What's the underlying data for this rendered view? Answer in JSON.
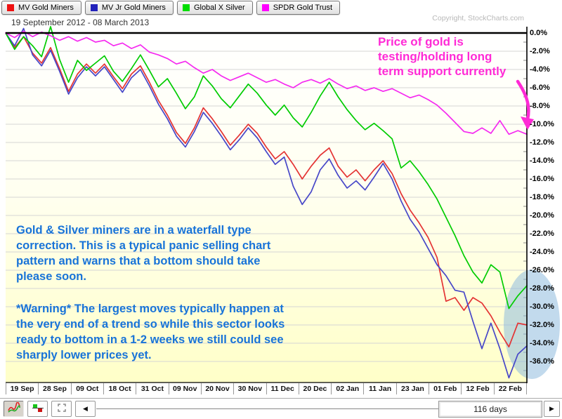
{
  "header": {
    "date_range": "19 September 2012 - 08 March 2013",
    "copyright": "Copyright, StockCharts.com"
  },
  "legend": {
    "items": [
      {
        "label": "MV Gold Miners",
        "color": "#ee1111"
      },
      {
        "label": "MV Jr Gold Miners",
        "color": "#2222bb"
      },
      {
        "label": "Global X Silver",
        "color": "#00dd00"
      },
      {
        "label": "SPDR Gold Trust",
        "color": "#ff00ff"
      }
    ]
  },
  "chart_data": {
    "type": "line",
    "title": "19 September 2012 - 08 March 2013",
    "unit": "percent change (%)",
    "grid": true,
    "legend_position": "top",
    "ylim": [
      -38.3,
      1.3
    ],
    "x_tick_labels": [
      "19 Sep",
      "28 Sep",
      "09 Oct",
      "18 Oct",
      "31 Oct",
      "09 Nov",
      "20 Nov",
      "30 Nov",
      "11 Dec",
      "20 Dec",
      "02 Jan",
      "11 Jan",
      "23 Jan",
      "01 Feb",
      "12 Feb",
      "22 Feb"
    ],
    "y_tick_labels": [
      "0.0%",
      "-2.0%",
      "-4.0%",
      "-6.0%",
      "-8.0%",
      "-10.0%",
      "-12.0%",
      "-14.0%",
      "-16.0%",
      "-18.0%",
      "-20.0%",
      "-22.0%",
      "-24.0%",
      "-26.0%",
      "-28.0%",
      "-30.0%",
      "-32.0%",
      "-34.0%",
      "-36.0%"
    ],
    "series": [
      {
        "name": "MV Gold Miners",
        "color": "#e43333",
        "values": [
          0,
          -1.6,
          -0.4,
          -2.2,
          -3.3,
          -1.6,
          -3.9,
          -6.4,
          -4.5,
          -3.4,
          -4.4,
          -3.4,
          -4.8,
          -6.1,
          -4.5,
          -3.6,
          -5.4,
          -7.4,
          -9.0,
          -10.9,
          -12.1,
          -10.4,
          -8.2,
          -9.4,
          -10.8,
          -12.3,
          -11.2,
          -10.0,
          -11.0,
          -12.5,
          -13.8,
          -13.0,
          -14.4,
          -16.0,
          -14.6,
          -13.4,
          -12.6,
          -14.6,
          -15.8,
          -15.0,
          -16.2,
          -15.0,
          -14.0,
          -15.4,
          -17.6,
          -19.4,
          -20.8,
          -22.4,
          -24.6,
          -29.4,
          -29.0,
          -30.4,
          -29.0,
          -29.6,
          -31.0,
          -32.8,
          -34.4,
          -31.8,
          -32.0
        ]
      },
      {
        "name": "MV Jr Gold Miners",
        "color": "#4747c8",
        "values": [
          0,
          -1.4,
          0.5,
          -2.4,
          -3.6,
          -1.9,
          -4.2,
          -6.7,
          -4.9,
          -3.7,
          -4.7,
          -3.7,
          -5.1,
          -6.5,
          -4.9,
          -4.0,
          -5.8,
          -7.8,
          -9.4,
          -11.3,
          -12.5,
          -10.8,
          -8.7,
          -9.9,
          -11.3,
          -12.8,
          -11.7,
          -10.4,
          -11.5,
          -13.0,
          -14.4,
          -13.6,
          -16.8,
          -18.8,
          -17.4,
          -15.0,
          -13.8,
          -15.6,
          -17.0,
          -16.2,
          -17.2,
          -15.8,
          -14.3,
          -16.0,
          -18.4,
          -20.4,
          -21.8,
          -23.6,
          -25.4,
          -26.6,
          -28.2,
          -28.4,
          -31.6,
          -34.6,
          -31.8,
          -34.6,
          -37.8,
          -35.2,
          -34.3
        ]
      },
      {
        "name": "Global X Silver",
        "color": "#0c0",
        "values": [
          0,
          -1.8,
          -0.4,
          -1.4,
          -2.6,
          0.7,
          -2.9,
          -5.4,
          -3.0,
          -4.1,
          -3.3,
          -2.5,
          -4.2,
          -5.3,
          -3.9,
          -2.4,
          -4.1,
          -5.9,
          -5.0,
          -6.6,
          -8.3,
          -7.0,
          -4.7,
          -5.8,
          -7.2,
          -8.2,
          -6.9,
          -5.6,
          -6.6,
          -7.9,
          -9.0,
          -7.9,
          -9.3,
          -10.3,
          -8.7,
          -6.9,
          -5.4,
          -7.0,
          -8.4,
          -9.6,
          -10.6,
          -9.9,
          -10.7,
          -11.6,
          -14.8,
          -14.0,
          -15.2,
          -16.6,
          -18.2,
          -20.2,
          -22.2,
          -24.4,
          -26.2,
          -27.4,
          -25.4,
          -26.2,
          -30.2,
          -28.8,
          -27.7
        ]
      },
      {
        "name": "SPDR Gold Trust",
        "color": "#f52af0",
        "values": [
          0,
          -0.5,
          0.2,
          -0.4,
          0.1,
          -0.3,
          -0.8,
          -0.4,
          -0.9,
          -0.5,
          -1.0,
          -0.8,
          -1.4,
          -1.1,
          -1.7,
          -1.3,
          -2.1,
          -2.4,
          -2.8,
          -3.4,
          -3.1,
          -3.8,
          -4.4,
          -4.0,
          -4.7,
          -5.2,
          -4.8,
          -4.4,
          -4.9,
          -5.4,
          -5.1,
          -5.6,
          -6.0,
          -5.4,
          -5.1,
          -5.5,
          -5.0,
          -5.6,
          -6.1,
          -5.8,
          -6.3,
          -6.0,
          -6.4,
          -6.1,
          -6.6,
          -7.1,
          -6.8,
          -7.3,
          -7.9,
          -8.8,
          -9.8,
          -10.8,
          -11.0,
          -10.4,
          -11.0,
          -9.6,
          -11.1,
          -10.7,
          -11.1
        ]
      }
    ]
  },
  "annotations": {
    "gold_note": {
      "color": "#ff2ad6",
      "lines": [
        "Price of gold is",
        "testing/holding long",
        "term support currently"
      ]
    },
    "miners_note": {
      "color": "#1873d8",
      "lines": [
        "Gold & Silver miners are in a waterfall type",
        "correction. This is a typical panic selling chart",
        "pattern and warns that a bottom should take",
        "please soon."
      ]
    },
    "warning_note": {
      "color": "#1873d8",
      "lines": [
        "*Warning* The largest moves typically happen at",
        "the very end of a trend so while this sector looks",
        "ready to bottom in a 1-2 weeks we still could see",
        "sharply lower prices yet."
      ]
    },
    "highlight_ellipse_color": "#8fbbdf"
  },
  "toolbar": {
    "range_label": "116 days",
    "left_arrow_glyph": "◀",
    "right_arrow_glyph": "▶",
    "icons": [
      "performance-line-icon",
      "histogram-icon",
      "expand-icon",
      "scroll-left-icon",
      "scroll-right-icon"
    ]
  }
}
